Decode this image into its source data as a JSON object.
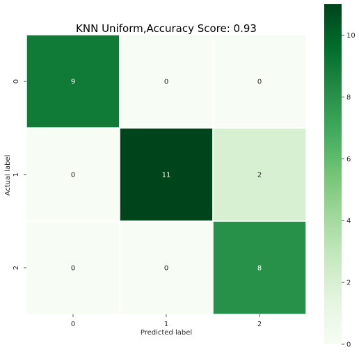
{
  "chart_data": {
    "type": "heatmap",
    "title": "KNN Uniform,Accuracy Score: 0.93",
    "xlabel": "Predicted label",
    "ylabel": "Actual label",
    "x_categories": [
      "0",
      "1",
      "2"
    ],
    "y_categories": [
      "0",
      "1",
      "2"
    ],
    "matrix": [
      [
        9,
        0,
        0
      ],
      [
        0,
        11,
        2
      ],
      [
        0,
        0,
        8
      ]
    ],
    "colorbar": {
      "min": 0,
      "max": 11,
      "ticks": [
        "0",
        "2",
        "4",
        "6",
        "8",
        "10"
      ]
    },
    "colormap": "Greens",
    "colors": {
      "low": "#f7fcf5",
      "high": "#00441b"
    }
  }
}
